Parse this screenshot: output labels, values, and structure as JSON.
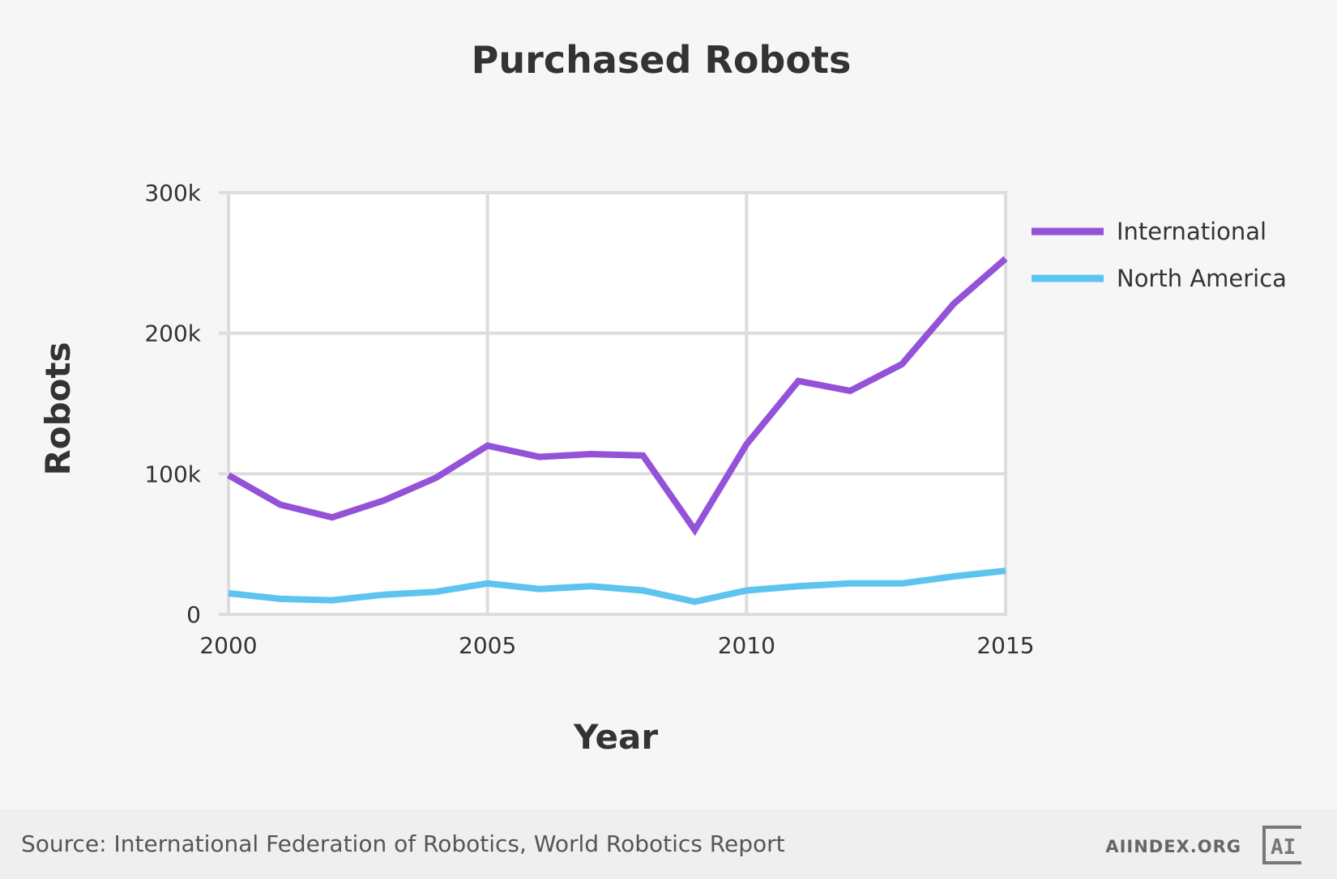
{
  "colors": {
    "international": "#9452d8",
    "north_america": "#5cc4ef",
    "grid": "#dddddd",
    "text": "#333333"
  },
  "chart_data": {
    "type": "line",
    "title": "Purchased Robots",
    "xlabel": "Year",
    "ylabel": "Robots",
    "x": [
      2000,
      2001,
      2002,
      2003,
      2004,
      2005,
      2006,
      2007,
      2008,
      2009,
      2010,
      2011,
      2012,
      2013,
      2014,
      2015
    ],
    "series": [
      {
        "name": "International",
        "color": "#9452d8",
        "values": [
          99000,
          78000,
          69000,
          81000,
          97000,
          120000,
          112000,
          114000,
          113000,
          60000,
          121000,
          166000,
          159000,
          178000,
          221000,
          253000
        ]
      },
      {
        "name": "North America",
        "color": "#5cc4ef",
        "values": [
          15000,
          11000,
          10000,
          14000,
          16000,
          22000,
          18000,
          20000,
          17000,
          9000,
          17000,
          20000,
          22000,
          22000,
          27000,
          31000
        ]
      }
    ],
    "xlim": [
      2000,
      2015
    ],
    "ylim": [
      0,
      300000
    ],
    "x_ticks": [
      2000,
      2005,
      2010,
      2015
    ],
    "x_tick_labels": [
      "2000",
      "2005",
      "2010",
      "2015"
    ],
    "y_ticks": [
      0,
      100000,
      200000,
      300000
    ],
    "y_tick_labels": [
      "0",
      "100k",
      "200k",
      "300k"
    ],
    "grid": true,
    "legend_position": "right"
  },
  "footer": {
    "source": "Source: International Federation of Robotics, World Robotics Report",
    "site": "AIINDEX.ORG",
    "logo_text": "AI"
  }
}
